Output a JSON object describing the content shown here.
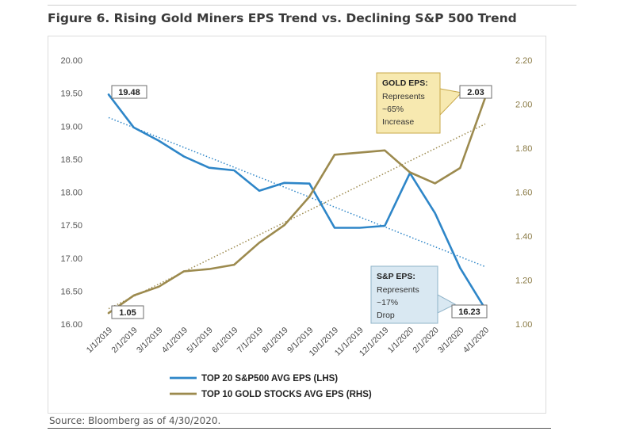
{
  "figure_title": "Figure 6. Rising Gold Miners EPS Trend vs. Declining S&P 500 Trend",
  "source": "Source: Bloomberg as of 4/30/2020.",
  "colors": {
    "sp500": "#2E86C8",
    "gold": "#9C8A4E",
    "gold_box_bg": "#F7E9B0",
    "gold_box_border": "#C9A94A",
    "sp_box_bg": "#D9E8F2",
    "sp_box_border": "#8FB3C8",
    "tick_left": "#555555",
    "tick_right": "#8A7A45"
  },
  "chart_data": {
    "type": "line",
    "categories": [
      "1/1/2019",
      "2/1/2019",
      "3/1/2019",
      "4/1/2019",
      "5/1/2019",
      "6/1/2019",
      "7/1/2019",
      "8/1/2019",
      "9/1/2019",
      "10/1/2019",
      "11/1/2019",
      "12/1/2019",
      "1/1/2020",
      "2/1/2020",
      "3/1/2020",
      "4/1/2020"
    ],
    "left_axis": {
      "min": 16.0,
      "max": 20.0,
      "ticks": [
        "16.00",
        "16.50",
        "17.00",
        "17.50",
        "18.00",
        "18.50",
        "19.00",
        "19.50",
        "20.00"
      ]
    },
    "right_axis": {
      "min": 1.0,
      "max": 2.2,
      "ticks": [
        "1.00",
        "1.20",
        "1.40",
        "1.60",
        "1.80",
        "2.00",
        "2.20"
      ]
    },
    "series": [
      {
        "name": "TOP 20 S&P500 AVG EPS (LHS)",
        "axis": "left",
        "color": "#2E86C8",
        "values": [
          19.48,
          18.98,
          18.78,
          18.54,
          18.37,
          18.33,
          18.02,
          18.14,
          18.13,
          17.46,
          17.46,
          17.49,
          18.29,
          17.68,
          16.85,
          16.23
        ],
        "trendline": [
          19.13,
          16.87
        ]
      },
      {
        "name": "TOP 10 GOLD STOCKS AVG EPS (RHS)",
        "axis": "right",
        "color": "#9C8A4E",
        "values": [
          1.05,
          1.13,
          1.17,
          1.24,
          1.25,
          1.27,
          1.37,
          1.45,
          1.58,
          1.77,
          1.78,
          1.79,
          1.69,
          1.64,
          1.71,
          2.03
        ],
        "trendline": [
          1.07,
          1.91
        ]
      }
    ],
    "data_labels": [
      {
        "text": "19.48",
        "series": 0,
        "index": 0
      },
      {
        "text": "16.23",
        "series": 0,
        "index": 15
      },
      {
        "text": "1.05",
        "series": 1,
        "index": 0
      },
      {
        "text": "2.03",
        "series": 1,
        "index": 15
      }
    ],
    "callouts": [
      {
        "title": "GOLD EPS:",
        "lines": [
          "Represents",
          "~65%",
          "Increase"
        ]
      },
      {
        "title": "S&P EPS:",
        "lines": [
          "Represents",
          "~17%",
          "Drop"
        ]
      }
    ],
    "legend_position": "bottom",
    "grid": false
  }
}
